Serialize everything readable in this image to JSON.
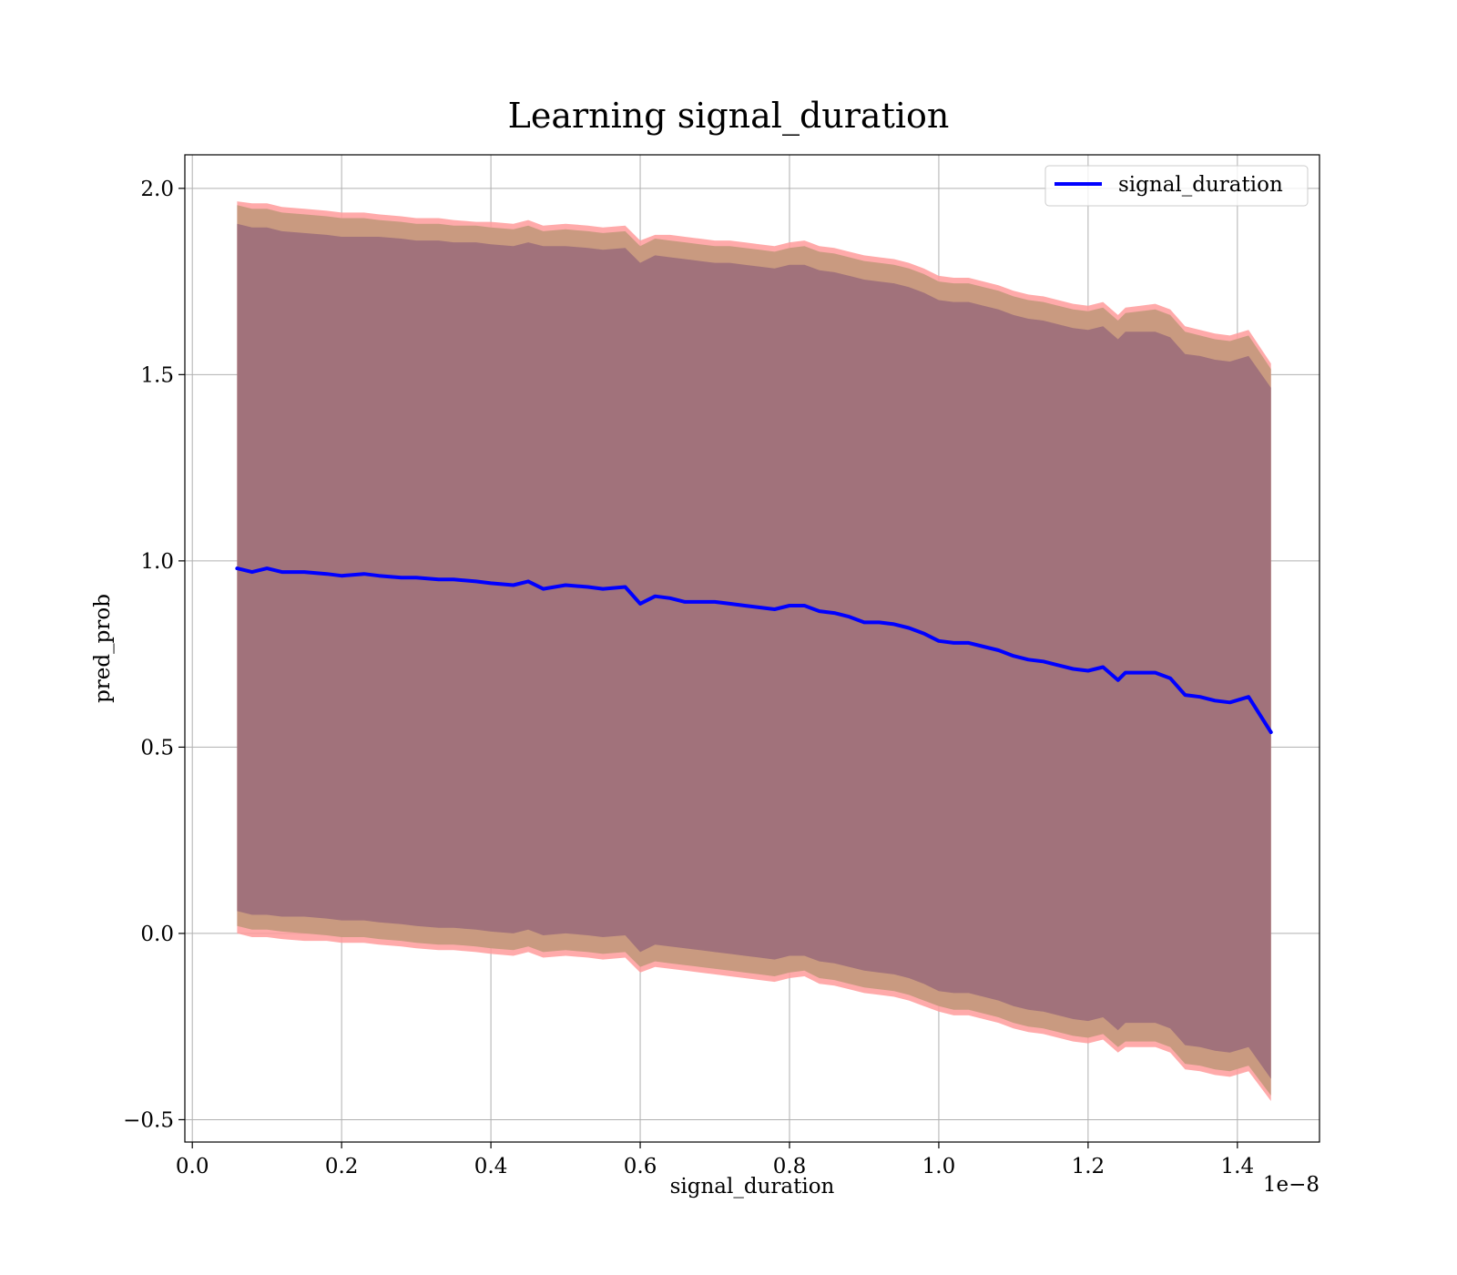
{
  "chart_data": {
    "type": "line",
    "title": "Learning signal_duration",
    "xlabel": "signal_duration",
    "ylabel": "pred_prob",
    "x_offset_label": "1e−8",
    "xlim": [
      -0.01,
      1.51
    ],
    "ylim": [
      -0.56,
      2.09
    ],
    "x_ticks": [
      0.0,
      0.2,
      0.4,
      0.6,
      0.8,
      1.0,
      1.2,
      1.4
    ],
    "x_tick_labels": [
      "0.0",
      "0.2",
      "0.4",
      "0.6",
      "0.8",
      "1.0",
      "1.2",
      "1.4"
    ],
    "y_ticks": [
      -0.5,
      0.0,
      0.5,
      1.0,
      1.5,
      2.0
    ],
    "y_tick_labels": [
      "−0.5",
      "0.0",
      "0.5",
      "1.0",
      "1.5",
      "2.0"
    ],
    "grid": true,
    "legend_position": "top-right",
    "colors": {
      "line": "#0000ff",
      "inner_band": "#a1727b",
      "mid_band": "#c99a80",
      "outer_band": "#ff9b9b",
      "grid": "#b0b0b0"
    },
    "series": [
      {
        "name": "signal_duration",
        "x": [
          0.06,
          0.08,
          0.1,
          0.12,
          0.15,
          0.18,
          0.2,
          0.23,
          0.25,
          0.28,
          0.3,
          0.33,
          0.35,
          0.38,
          0.4,
          0.43,
          0.45,
          0.47,
          0.5,
          0.53,
          0.55,
          0.58,
          0.6,
          0.62,
          0.64,
          0.66,
          0.68,
          0.7,
          0.72,
          0.74,
          0.76,
          0.78,
          0.8,
          0.82,
          0.84,
          0.86,
          0.88,
          0.9,
          0.92,
          0.94,
          0.96,
          0.98,
          1.0,
          1.02,
          1.04,
          1.06,
          1.08,
          1.1,
          1.12,
          1.14,
          1.16,
          1.18,
          1.2,
          1.22,
          1.24,
          1.25,
          1.27,
          1.29,
          1.31,
          1.33,
          1.35,
          1.37,
          1.39,
          1.415,
          1.445
        ],
        "values": [
          0.98,
          0.97,
          0.98,
          0.97,
          0.97,
          0.965,
          0.96,
          0.965,
          0.96,
          0.955,
          0.955,
          0.95,
          0.95,
          0.945,
          0.94,
          0.935,
          0.945,
          0.925,
          0.935,
          0.93,
          0.925,
          0.93,
          0.885,
          0.905,
          0.9,
          0.89,
          0.89,
          0.89,
          0.885,
          0.88,
          0.875,
          0.87,
          0.88,
          0.88,
          0.865,
          0.86,
          0.85,
          0.835,
          0.835,
          0.83,
          0.82,
          0.805,
          0.785,
          0.78,
          0.78,
          0.77,
          0.76,
          0.745,
          0.735,
          0.73,
          0.72,
          0.71,
          0.705,
          0.715,
          0.68,
          0.7,
          0.7,
          0.7,
          0.685,
          0.64,
          0.635,
          0.625,
          0.62,
          0.635,
          0.54
        ],
        "inner_upper": [
          1.905,
          1.895,
          1.895,
          1.885,
          1.88,
          1.875,
          1.87,
          1.87,
          1.87,
          1.865,
          1.86,
          1.86,
          1.855,
          1.855,
          1.85,
          1.845,
          1.855,
          1.845,
          1.845,
          1.84,
          1.835,
          1.84,
          1.8,
          1.82,
          1.815,
          1.81,
          1.805,
          1.8,
          1.8,
          1.795,
          1.79,
          1.785,
          1.795,
          1.795,
          1.78,
          1.775,
          1.765,
          1.755,
          1.75,
          1.745,
          1.735,
          1.72,
          1.7,
          1.695,
          1.695,
          1.685,
          1.675,
          1.66,
          1.65,
          1.645,
          1.635,
          1.625,
          1.62,
          1.63,
          1.595,
          1.615,
          1.615,
          1.615,
          1.6,
          1.555,
          1.55,
          1.54,
          1.535,
          1.55,
          1.465
        ],
        "inner_lower": [
          0.06,
          0.05,
          0.05,
          0.045,
          0.045,
          0.04,
          0.035,
          0.035,
          0.03,
          0.025,
          0.02,
          0.015,
          0.015,
          0.01,
          0.005,
          0.0,
          0.01,
          -0.005,
          0.0,
          -0.005,
          -0.01,
          -0.005,
          -0.05,
          -0.03,
          -0.035,
          -0.04,
          -0.045,
          -0.05,
          -0.055,
          -0.06,
          -0.065,
          -0.07,
          -0.06,
          -0.06,
          -0.075,
          -0.08,
          -0.09,
          -0.1,
          -0.105,
          -0.11,
          -0.12,
          -0.135,
          -0.155,
          -0.16,
          -0.16,
          -0.17,
          -0.18,
          -0.195,
          -0.205,
          -0.21,
          -0.22,
          -0.23,
          -0.235,
          -0.225,
          -0.26,
          -0.24,
          -0.24,
          -0.24,
          -0.255,
          -0.3,
          -0.305,
          -0.315,
          -0.32,
          -0.305,
          -0.39
        ],
        "mid_upper": [
          1.955,
          1.945,
          1.945,
          1.935,
          1.93,
          1.925,
          1.92,
          1.92,
          1.915,
          1.91,
          1.905,
          1.905,
          1.9,
          1.9,
          1.895,
          1.89,
          1.9,
          1.885,
          1.89,
          1.885,
          1.88,
          1.885,
          1.845,
          1.865,
          1.86,
          1.855,
          1.85,
          1.845,
          1.845,
          1.84,
          1.835,
          1.83,
          1.84,
          1.845,
          1.83,
          1.825,
          1.815,
          1.805,
          1.8,
          1.795,
          1.785,
          1.77,
          1.75,
          1.745,
          1.745,
          1.735,
          1.725,
          1.71,
          1.7,
          1.695,
          1.685,
          1.675,
          1.67,
          1.68,
          1.645,
          1.665,
          1.67,
          1.675,
          1.66,
          1.615,
          1.605,
          1.595,
          1.59,
          1.605,
          1.515
        ],
        "mid_lower": [
          0.02,
          0.01,
          0.01,
          0.005,
          0.0,
          -0.005,
          -0.01,
          -0.01,
          -0.015,
          -0.02,
          -0.025,
          -0.03,
          -0.03,
          -0.035,
          -0.04,
          -0.045,
          -0.035,
          -0.05,
          -0.045,
          -0.05,
          -0.055,
          -0.05,
          -0.09,
          -0.075,
          -0.08,
          -0.085,
          -0.09,
          -0.095,
          -0.1,
          -0.105,
          -0.11,
          -0.115,
          -0.105,
          -0.1,
          -0.12,
          -0.125,
          -0.135,
          -0.145,
          -0.15,
          -0.155,
          -0.165,
          -0.18,
          -0.195,
          -0.205,
          -0.205,
          -0.215,
          -0.225,
          -0.24,
          -0.25,
          -0.255,
          -0.265,
          -0.275,
          -0.28,
          -0.27,
          -0.305,
          -0.29,
          -0.29,
          -0.29,
          -0.305,
          -0.35,
          -0.355,
          -0.365,
          -0.37,
          -0.355,
          -0.435
        ],
        "outer_upper": [
          1.965,
          1.96,
          1.96,
          1.95,
          1.945,
          1.94,
          1.935,
          1.935,
          1.93,
          1.925,
          1.92,
          1.92,
          1.915,
          1.91,
          1.91,
          1.905,
          1.915,
          1.9,
          1.905,
          1.9,
          1.895,
          1.9,
          1.86,
          1.875,
          1.875,
          1.87,
          1.865,
          1.86,
          1.86,
          1.855,
          1.85,
          1.845,
          1.855,
          1.86,
          1.845,
          1.84,
          1.83,
          1.82,
          1.815,
          1.81,
          1.8,
          1.785,
          1.765,
          1.76,
          1.76,
          1.75,
          1.74,
          1.725,
          1.715,
          1.71,
          1.7,
          1.69,
          1.685,
          1.695,
          1.66,
          1.68,
          1.685,
          1.69,
          1.675,
          1.63,
          1.62,
          1.61,
          1.605,
          1.62,
          1.53
        ],
        "outer_lower": [
          0.0,
          -0.01,
          -0.01,
          -0.015,
          -0.02,
          -0.02,
          -0.025,
          -0.025,
          -0.03,
          -0.035,
          -0.04,
          -0.045,
          -0.045,
          -0.05,
          -0.055,
          -0.06,
          -0.05,
          -0.065,
          -0.06,
          -0.065,
          -0.07,
          -0.065,
          -0.105,
          -0.09,
          -0.095,
          -0.1,
          -0.105,
          -0.11,
          -0.115,
          -0.12,
          -0.125,
          -0.13,
          -0.12,
          -0.115,
          -0.135,
          -0.14,
          -0.15,
          -0.16,
          -0.165,
          -0.17,
          -0.18,
          -0.195,
          -0.21,
          -0.22,
          -0.22,
          -0.23,
          -0.24,
          -0.255,
          -0.265,
          -0.27,
          -0.28,
          -0.29,
          -0.295,
          -0.285,
          -0.32,
          -0.305,
          -0.305,
          -0.305,
          -0.32,
          -0.365,
          -0.37,
          -0.38,
          -0.385,
          -0.37,
          -0.45
        ]
      }
    ]
  }
}
